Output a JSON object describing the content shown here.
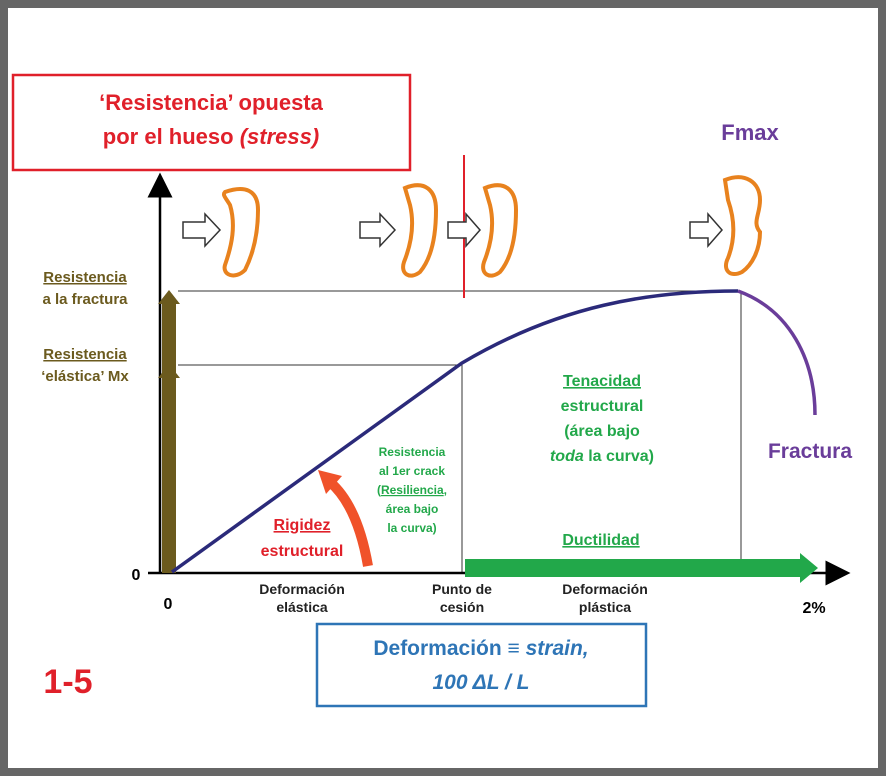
{
  "stress_box": {
    "line1": "‘Resistencia’ opuesta",
    "line2": "por el hueso ",
    "line2_italic": "(stress)"
  },
  "fmax": "Fmax",
  "fracture_strength": {
    "line1": "Resistencia",
    "line2": "a la fractura"
  },
  "elastic_strength": {
    "line1": "Resistencia",
    "line2": "‘elástica’ Mx"
  },
  "y_origin": "0",
  "x_origin": "0",
  "x_end": "2%",
  "toughness": {
    "line1": "Tenacidad",
    "line2": "estructural",
    "line3": "(área bajo",
    "line4_italic": "toda",
    "line4": " la curva)"
  },
  "resilience": {
    "line1": "Resistencia",
    "line2": "al 1er crack",
    "line3_open": "(",
    "line3": "Resiliencia",
    "line3_close": ",",
    "line4": "área bajo",
    "line5": "la curva)"
  },
  "stiffness": {
    "line1": "Rigidez",
    "line2": "estructural"
  },
  "ductility": "Ductilidad",
  "fracture": "Fractura",
  "x_labels": {
    "elastic": [
      "Deformación",
      "elástica"
    ],
    "yield": [
      "Punto de",
      "cesión"
    ],
    "plastic": [
      "Deformación",
      "plástica"
    ]
  },
  "strain_box": {
    "line1": "Deformación ≡ ",
    "line1_italic": "strain,",
    "line2_italic": "100 ΔL / L"
  },
  "figure_number": "1-5"
}
